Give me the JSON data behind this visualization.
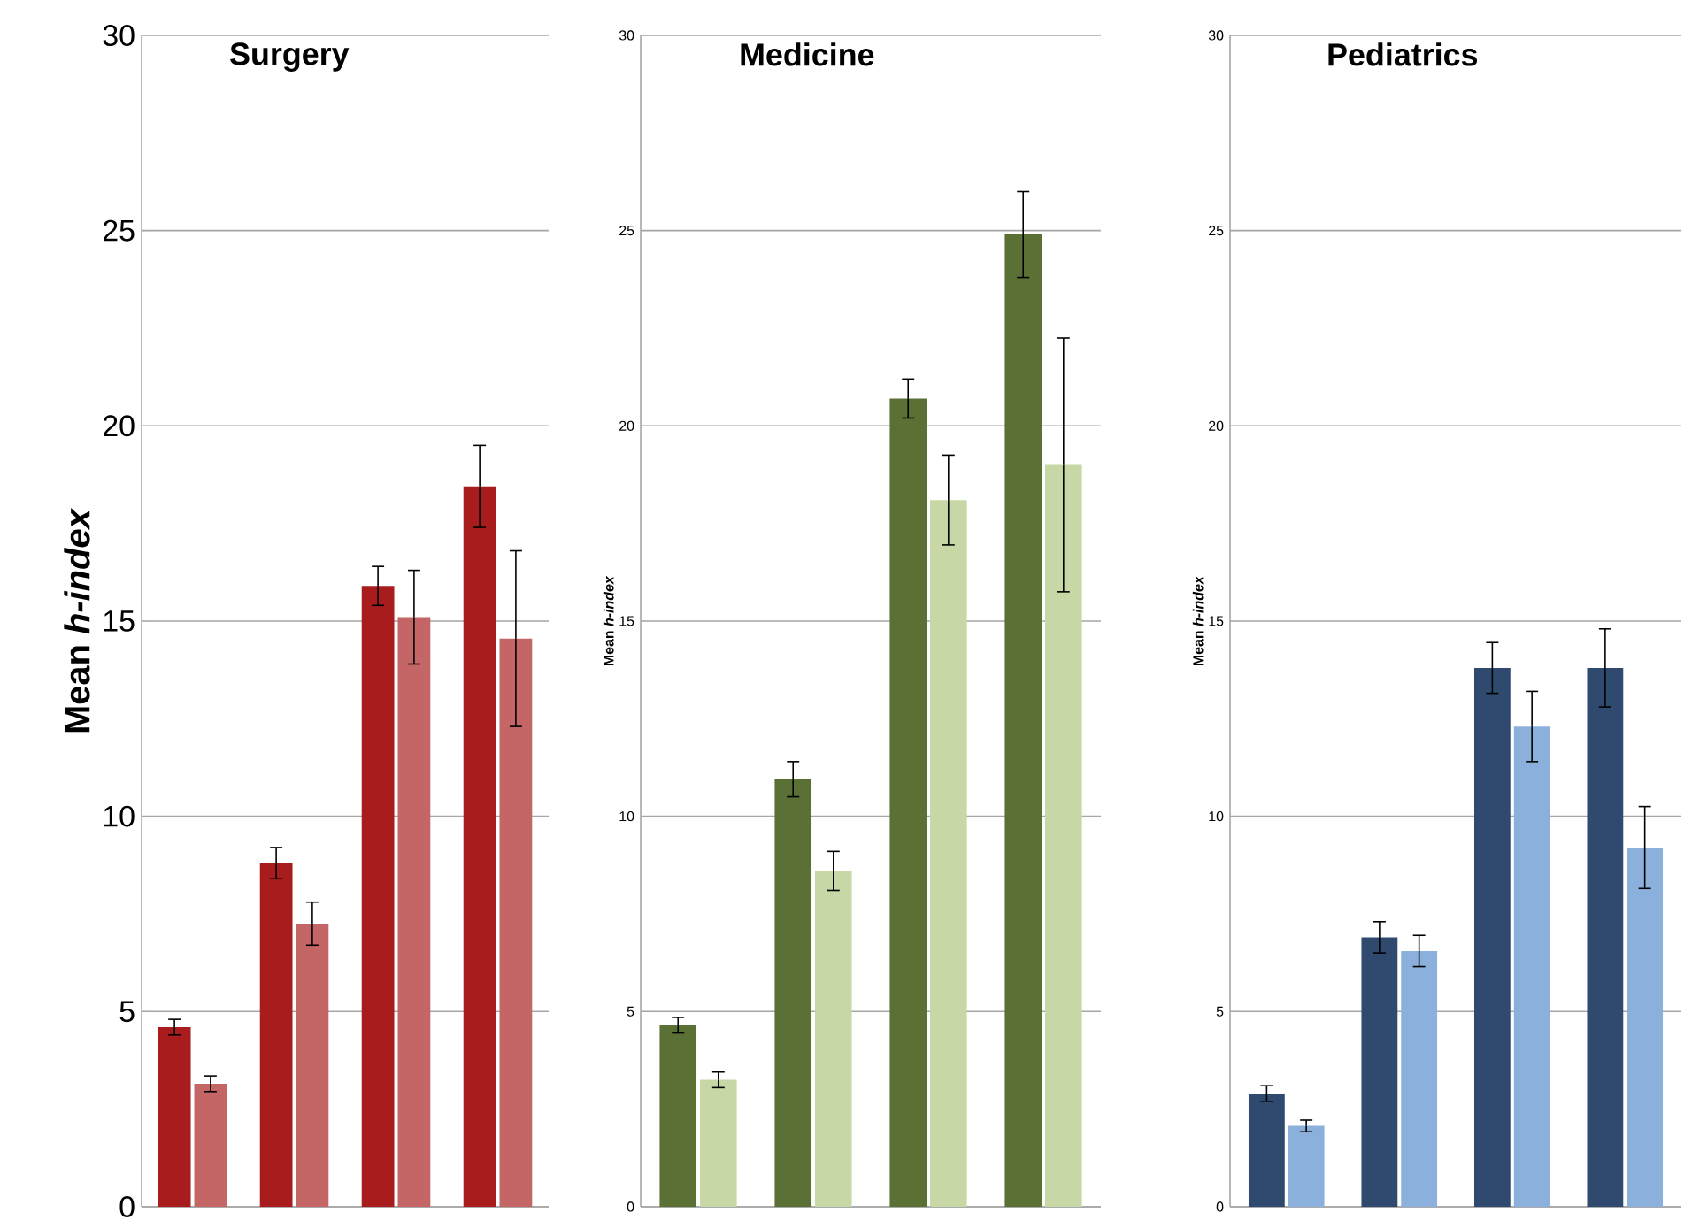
{
  "chart_data": [
    {
      "type": "bar",
      "title": "Surgery",
      "ylabel": "Mean *h-index*",
      "categories": [
        null,
        null,
        null,
        null
      ],
      "ylim": [
        0,
        30
      ],
      "yticks": [
        0,
        5,
        10,
        15,
        20,
        25,
        30
      ],
      "grid": "y",
      "series": [
        {
          "color": "#a81c1e",
          "values": [
            4.6,
            8.8,
            15.9,
            18.45
          ],
          "errors": [
            0.2,
            0.4,
            0.5,
            1.05
          ]
        },
        {
          "color": "#c46566",
          "values": [
            3.15,
            7.25,
            15.1,
            14.55
          ],
          "errors": [
            0.2,
            0.55,
            1.2,
            2.25
          ]
        }
      ]
    },
    {
      "type": "bar",
      "title": "Medicine",
      "ylabel": "Mean *h-index*",
      "categories": [
        null,
        null,
        null,
        null
      ],
      "ylim": [
        0,
        30
      ],
      "yticks": [
        0,
        5,
        10,
        15,
        20,
        25,
        30
      ],
      "grid": "y",
      "series": [
        {
          "color": "#5a7035",
          "values": [
            4.65,
            10.95,
            20.7,
            24.9
          ],
          "errors": [
            0.2,
            0.45,
            0.5,
            1.1
          ]
        },
        {
          "color": "#c7d8a6",
          "values": [
            3.25,
            8.6,
            18.1,
            19.0
          ],
          "errors": [
            0.2,
            0.5,
            1.15,
            3.25
          ]
        }
      ]
    },
    {
      "type": "bar",
      "title": "Pediatrics",
      "ylabel": "Mean *h-index*",
      "categories": [
        null,
        null,
        null,
        null
      ],
      "ylim": [
        0,
        30
      ],
      "yticks": [
        0,
        5,
        10,
        15,
        20,
        25,
        30
      ],
      "grid": "y",
      "series": [
        {
          "color": "#2f4a6e",
          "values": [
            2.9,
            6.9,
            13.8,
            13.8
          ],
          "errors": [
            0.2,
            0.4,
            0.65,
            1.0
          ]
        },
        {
          "color": "#8cb0dc",
          "values": [
            2.07,
            6.55,
            12.3,
            9.2
          ],
          "errors": [
            0.15,
            0.4,
            0.9,
            1.05
          ]
        }
      ]
    }
  ]
}
